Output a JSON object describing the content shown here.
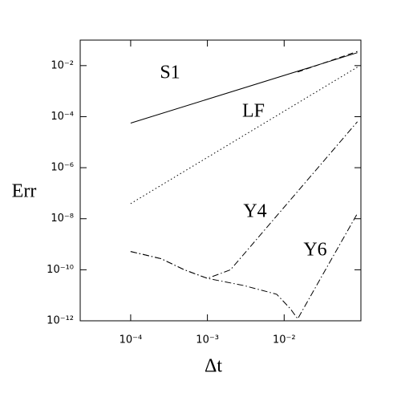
{
  "chart_data": {
    "type": "line",
    "xscale": "log",
    "yscale": "log",
    "xlabel": "Δt",
    "ylabel": "Err",
    "xlim": [
      2.2e-05,
      0.1
    ],
    "ylim": [
      1e-12,
      0.1
    ],
    "xticks": [
      {
        "value": 0.0001,
        "label": "10⁻⁴"
      },
      {
        "value": 0.001,
        "label": "10⁻³"
      },
      {
        "value": 0.01,
        "label": "10⁻²"
      }
    ],
    "yticks": [
      {
        "value": 1e-12,
        "label": "10⁻¹²"
      },
      {
        "value": 1e-10,
        "label": "10⁻¹⁰"
      },
      {
        "value": 1e-08,
        "label": "10⁻⁸"
      },
      {
        "value": 1e-06,
        "label": "10⁻⁶"
      },
      {
        "value": 0.0001,
        "label": "10⁻⁴"
      },
      {
        "value": 0.01,
        "label": "10⁻²"
      }
    ],
    "series": [
      {
        "name": "S1",
        "color": "#000000",
        "style": "solid",
        "x": [
          0.0001,
          0.09
        ],
        "values": [
          5.6e-05,
          0.032
        ]
      },
      {
        "color": "#000000",
        "style": "dashed",
        "x": [
          0.015,
          0.09
        ],
        "values": [
          0.0056,
          0.036
        ]
      },
      {
        "name": "LF",
        "color": "#000000",
        "style": "dotted",
        "x": [
          0.0001,
          0.09
        ],
        "values": [
          3.9e-08,
          0.0087
        ]
      },
      {
        "name": "Y4",
        "color": "#000000",
        "style": "dashdot",
        "x": [
          0.0001,
          0.00025,
          0.0005,
          0.001,
          0.002,
          0.09
        ],
        "values": [
          5.2e-10,
          2.7e-10,
          1e-10,
          4.6e-11,
          1e-10,
          6.3e-05
        ]
      },
      {
        "name": "Y6",
        "color": "#000000",
        "style": "dashdot",
        "x": [
          0.0001,
          0.00025,
          0.0005,
          0.001,
          0.003,
          0.008,
          0.012,
          0.015,
          0.09
        ],
        "values": [
          5.2e-10,
          2.7e-10,
          1e-10,
          4.6e-11,
          2.4e-11,
          1.1e-11,
          3e-12,
          1.2e-12,
          1.6e-08
        ]
      }
    ]
  }
}
